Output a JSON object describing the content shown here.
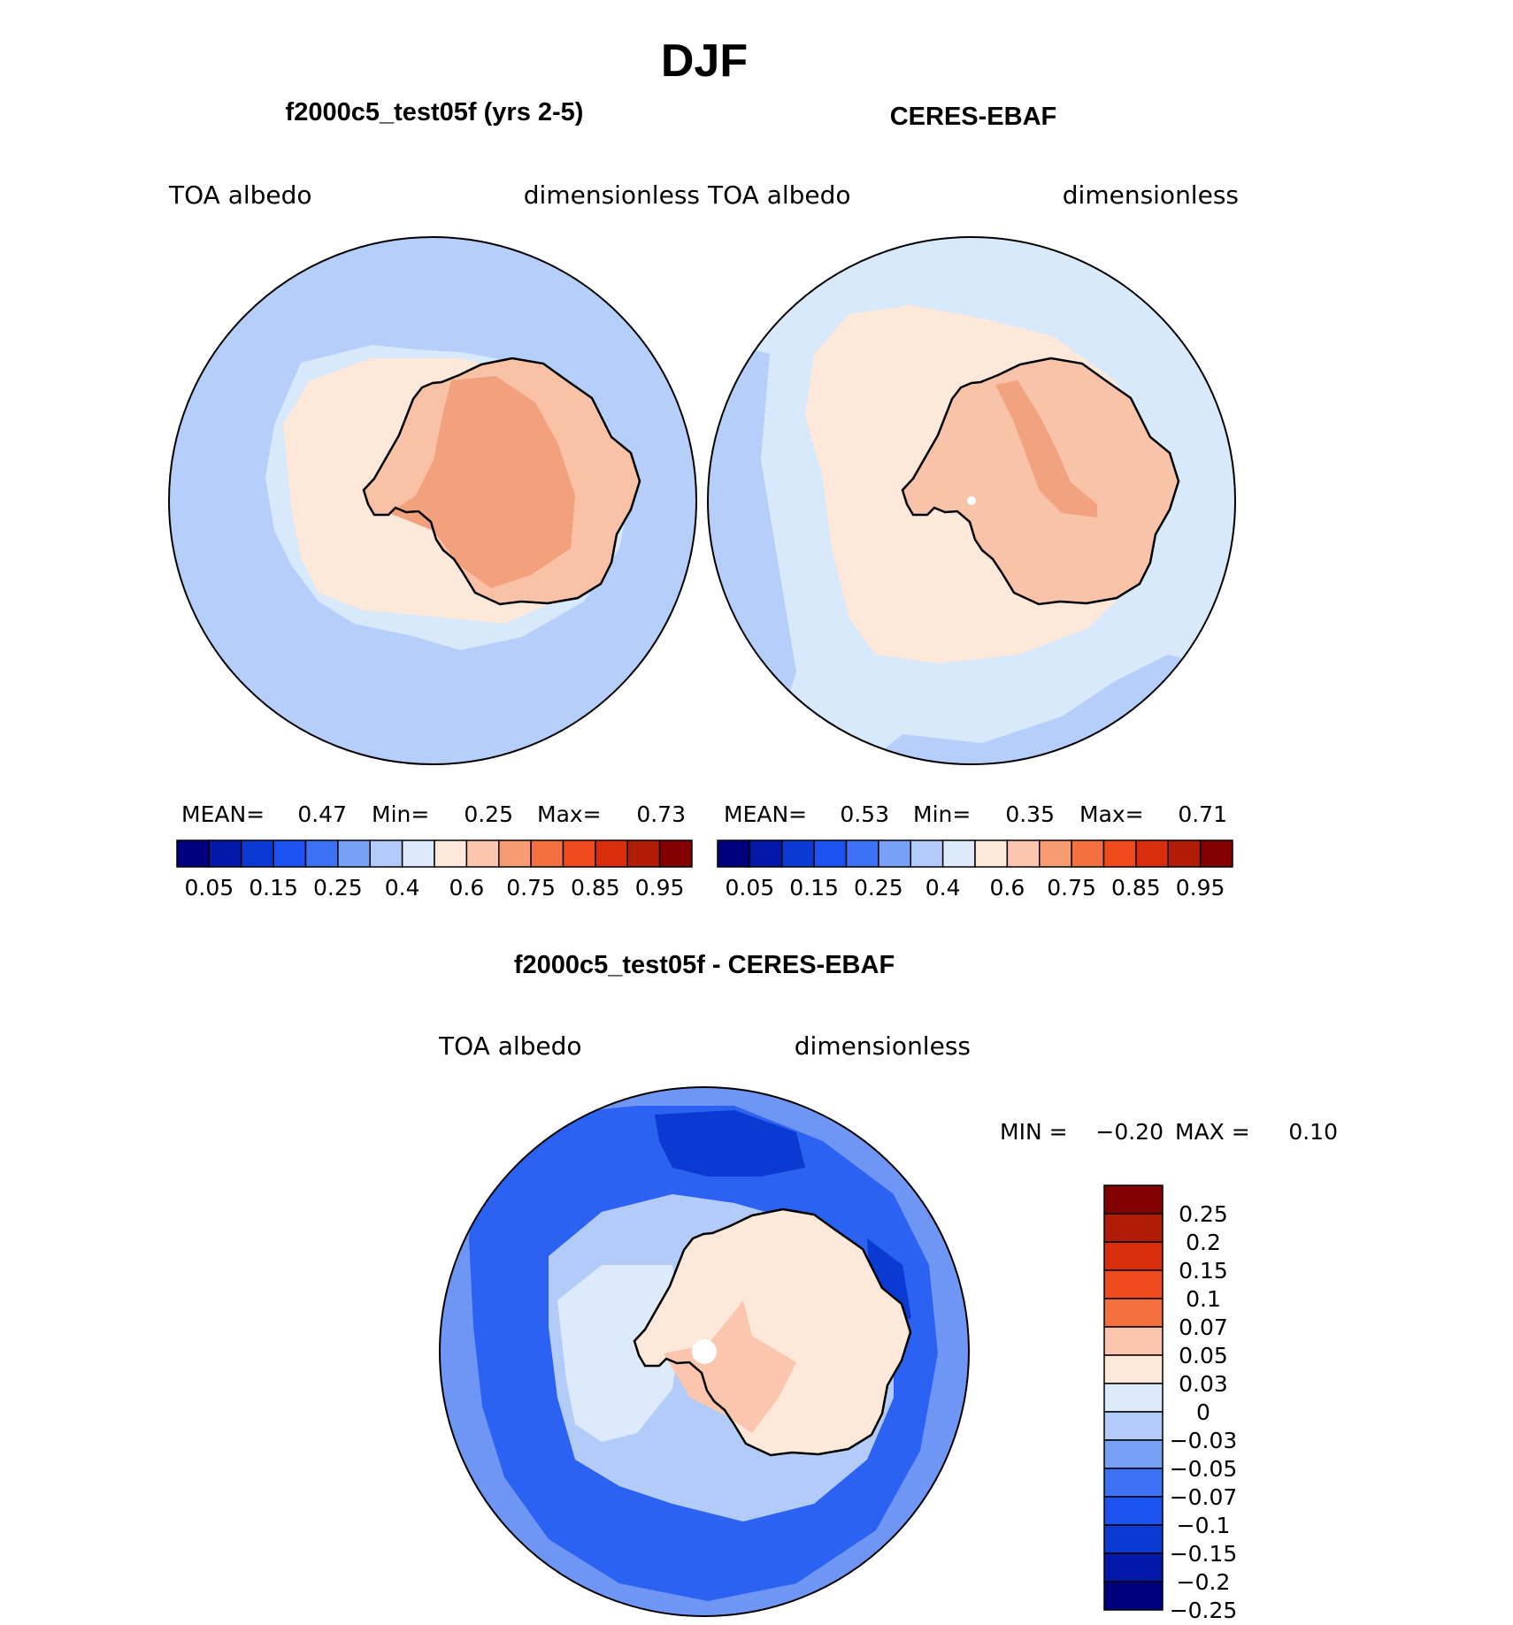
{
  "figure_title": "DJF",
  "colors": {
    "coast": "#000000",
    "land_model_a": "#f9b79a",
    "land_model_b": "#f39d7a",
    "land_obs_a": "#f8c3a9",
    "land_obs_b": "#f3a27f",
    "ocean_model": "#b6cefa",
    "ocean_obs": "#d8e9fc",
    "diff_deep": "#0a3ad1",
    "diff_mid": "#2b62f1",
    "diff_light": "#6f96f5",
    "diff_land": "#fbe6d8"
  },
  "chart_data": [
    {
      "type": "heatmap",
      "id": "model",
      "title": "f2000c5_test05f (yrs 2-5)",
      "left_label": "TOA  albedo",
      "right_label": "dimensionless",
      "stats": {
        "mean_label": "MEAN=",
        "mean": "0.47",
        "min_label": "Min=",
        "min": "0.25",
        "max_label": "Max=",
        "max": "0.73"
      },
      "colorbar": {
        "orientation": "horizontal",
        "colors": [
          "#00007f",
          "#0318a8",
          "#0a3ad1",
          "#1c52ef",
          "#3d72f4",
          "#78a0f6",
          "#b3cbf9",
          "#dceafc",
          "#fde8da",
          "#fbc6ad",
          "#f79b73",
          "#f4703f",
          "#ef4b1c",
          "#d82e0b",
          "#b01c05",
          "#820000"
        ],
        "tick_labels": [
          "0.05",
          "0.15",
          "0.25",
          "0.4",
          "0.6",
          "0.75",
          "0.85",
          "0.95"
        ]
      }
    },
    {
      "type": "heatmap",
      "id": "obs",
      "title": "CERES-EBAF",
      "left_label": "TOA  albedo",
      "right_label": "dimensionless",
      "stats": {
        "mean_label": "MEAN=",
        "mean": "0.53",
        "min_label": "Min=",
        "min": "0.35",
        "max_label": "Max=",
        "max": "0.71"
      },
      "colorbar": {
        "orientation": "horizontal",
        "colors": [
          "#00007f",
          "#0318a8",
          "#0a3ad1",
          "#1c52ef",
          "#3d72f4",
          "#78a0f6",
          "#b3cbf9",
          "#dceafc",
          "#fde8da",
          "#fbc6ad",
          "#f79b73",
          "#f4703f",
          "#ef4b1c",
          "#d82e0b",
          "#b01c05",
          "#820000"
        ],
        "tick_labels": [
          "0.05",
          "0.15",
          "0.25",
          "0.4",
          "0.6",
          "0.75",
          "0.85",
          "0.95"
        ]
      }
    },
    {
      "type": "heatmap",
      "id": "diff",
      "title": "f2000c5_test05f - CERES-EBAF",
      "left_label": "TOA  albedo",
      "right_label": "dimensionless",
      "stats": {
        "min_label": "MIN =",
        "min": "−0.20",
        "max_label": "MAX =",
        "max": "0.10"
      },
      "colorbar": {
        "orientation": "vertical",
        "colors": [
          "#820000",
          "#b01c05",
          "#d82e0b",
          "#ef4b1c",
          "#f4703f",
          "#fbc6ad",
          "#fde8da",
          "#dceafc",
          "#b3cbf9",
          "#78a0f6",
          "#3d72f4",
          "#1c52ef",
          "#0a3ad1",
          "#0318a8",
          "#00007f"
        ],
        "tick_labels": [
          "0.25",
          "0.2",
          "0.15",
          "0.1",
          "0.07",
          "0.05",
          "0.03",
          "0",
          "−0.03",
          "−0.05",
          "−0.07",
          "−0.1",
          "−0.15",
          "−0.2",
          "−0.25"
        ]
      }
    }
  ]
}
